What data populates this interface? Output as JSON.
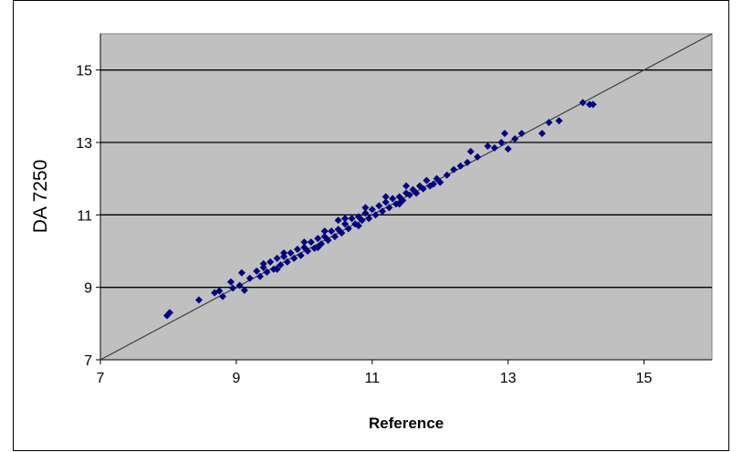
{
  "chart_data": {
    "type": "scatter",
    "xlabel": "Reference",
    "ylabel": "DA 7250",
    "xlim": [
      7,
      16
    ],
    "ylim": [
      7,
      16
    ],
    "x_ticks": [
      7,
      9,
      11,
      13,
      15
    ],
    "y_ticks": [
      7,
      9,
      11,
      13,
      15
    ],
    "x_tick_labels": [
      "7",
      "9",
      "11",
      "13",
      "15"
    ],
    "y_tick_labels": [
      "7",
      "9",
      "11",
      "13",
      "15"
    ],
    "grid": "horizontal",
    "legend": "none",
    "reference_line": {
      "from": [
        7,
        7
      ],
      "to": [
        16,
        16
      ]
    },
    "colors": {
      "plot_background": "#c0c0c0",
      "marker": "#000080",
      "gridline": "#000000",
      "reference_line": "#404040"
    },
    "series": [
      {
        "marker": "diamond",
        "points": [
          [
            7.98,
            8.22
          ],
          [
            8.02,
            8.3
          ],
          [
            8.45,
            8.65
          ],
          [
            8.68,
            8.85
          ],
          [
            8.75,
            8.9
          ],
          [
            8.8,
            8.75
          ],
          [
            8.92,
            9.15
          ],
          [
            8.95,
            8.98
          ],
          [
            9.05,
            9.05
          ],
          [
            9.08,
            9.4
          ],
          [
            9.12,
            8.92
          ],
          [
            9.2,
            9.25
          ],
          [
            9.3,
            9.45
          ],
          [
            9.35,
            9.3
          ],
          [
            9.4,
            9.55
          ],
          [
            9.45,
            9.42
          ],
          [
            9.5,
            9.7
          ],
          [
            9.55,
            9.5
          ],
          [
            9.6,
            9.8
          ],
          [
            9.65,
            9.62
          ],
          [
            9.7,
            9.85
          ],
          [
            9.75,
            9.7
          ],
          [
            9.8,
            9.95
          ],
          [
            9.85,
            9.8
          ],
          [
            9.9,
            10.05
          ],
          [
            9.95,
            9.88
          ],
          [
            10.0,
            10.1
          ],
          [
            10.05,
            10.0
          ],
          [
            10.1,
            10.25
          ],
          [
            10.15,
            10.08
          ],
          [
            10.2,
            10.35
          ],
          [
            10.25,
            10.2
          ],
          [
            10.3,
            10.4
          ],
          [
            10.35,
            10.3
          ],
          [
            10.4,
            10.55
          ],
          [
            10.45,
            10.4
          ],
          [
            10.5,
            10.6
          ],
          [
            10.5,
            10.85
          ],
          [
            10.55,
            10.5
          ],
          [
            10.6,
            10.75
          ],
          [
            10.65,
            10.62
          ],
          [
            10.7,
            10.9
          ],
          [
            10.75,
            10.75
          ],
          [
            10.8,
            10.95
          ],
          [
            10.85,
            10.85
          ],
          [
            10.9,
            11.05
          ],
          [
            10.95,
            10.9
          ],
          [
            11.0,
            11.15
          ],
          [
            11.05,
            11.0
          ],
          [
            11.1,
            11.25
          ],
          [
            11.15,
            11.1
          ],
          [
            11.2,
            11.35
          ],
          [
            11.25,
            11.2
          ],
          [
            11.3,
            11.45
          ],
          [
            11.35,
            11.3
          ],
          [
            11.4,
            11.5
          ],
          [
            11.45,
            11.4
          ],
          [
            11.5,
            11.6
          ],
          [
            11.55,
            11.55
          ],
          [
            11.6,
            11.7
          ],
          [
            11.65,
            11.6
          ],
          [
            11.7,
            11.8
          ],
          [
            11.75,
            11.72
          ],
          [
            11.8,
            11.95
          ],
          [
            11.85,
            11.8
          ],
          [
            11.9,
            11.85
          ],
          [
            11.95,
            12.0
          ],
          [
            12.0,
            11.9
          ],
          [
            12.1,
            12.1
          ],
          [
            12.2,
            12.25
          ],
          [
            12.3,
            12.35
          ],
          [
            12.4,
            12.45
          ],
          [
            12.45,
            12.75
          ],
          [
            12.55,
            12.6
          ],
          [
            12.7,
            12.9
          ],
          [
            12.8,
            12.85
          ],
          [
            12.9,
            13.0
          ],
          [
            12.95,
            13.25
          ],
          [
            13.0,
            12.82
          ],
          [
            13.1,
            13.1
          ],
          [
            13.2,
            13.25
          ],
          [
            13.5,
            13.25
          ],
          [
            13.6,
            13.55
          ],
          [
            13.75,
            13.6
          ],
          [
            14.1,
            14.1
          ],
          [
            14.2,
            14.05
          ],
          [
            14.25,
            14.05
          ],
          [
            9.4,
            9.65
          ],
          [
            9.7,
            9.95
          ],
          [
            10.0,
            10.25
          ],
          [
            10.3,
            10.55
          ],
          [
            10.6,
            10.9
          ],
          [
            10.9,
            11.2
          ],
          [
            11.2,
            11.5
          ],
          [
            11.5,
            11.8
          ],
          [
            9.6,
            9.5
          ],
          [
            10.2,
            10.1
          ],
          [
            10.8,
            10.7
          ],
          [
            11.4,
            11.3
          ]
        ]
      }
    ]
  }
}
